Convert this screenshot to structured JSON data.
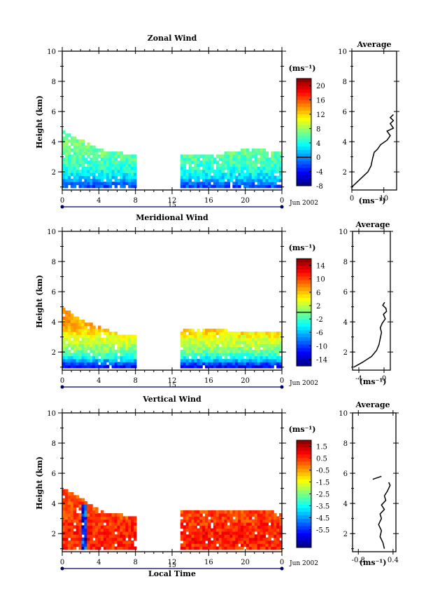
{
  "figure": {
    "date_label": "Jun 2002",
    "day_label": "15",
    "xlabel_bottom": "Local Time"
  },
  "chart_data": [
    {
      "type": "heatmap",
      "title": "Zonal Wind",
      "ylabel": "Height (km)",
      "ylim": [
        0.8,
        10
      ],
      "yticks": [
        2,
        4,
        6,
        8,
        10
      ],
      "xticks": [
        "0",
        "4",
        "8",
        "12",
        "16",
        "20",
        "0"
      ],
      "xlim_hours": [
        0,
        24
      ],
      "data_gap_hours": [
        8,
        12.8
      ],
      "echo_top_km": {
        "x_hours": [
          0,
          2,
          4,
          6,
          8,
          12.8,
          16,
          20,
          24
        ],
        "top": [
          4.6,
          4.0,
          3.4,
          3.2,
          3.0,
          3.1,
          3.0,
          3.4,
          3.3
        ]
      },
      "colorbar": {
        "label": "(ms⁻¹)",
        "min": -8,
        "max": 22,
        "ticks": [
          "20",
          "16",
          "12",
          "8",
          "4",
          "0",
          "-4",
          "-8"
        ],
        "tick_values": [
          20,
          16,
          12,
          8,
          4,
          0,
          -4,
          -8
        ],
        "zero_line": 0
      },
      "field": {
        "layers_km": [
          1.0,
          1.5,
          2.0,
          2.5,
          3.0,
          3.5,
          4.0,
          4.5
        ],
        "values": [
          -2,
          2,
          4,
          5,
          6,
          7,
          7,
          6
        ]
      },
      "profile": {
        "title": "Average",
        "xlabel": "(ms⁻¹)",
        "xticks": [
          "0",
          "10"
        ],
        "xtick_values": [
          0,
          10
        ],
        "xlim": [
          0,
          14
        ],
        "ylim": [
          0.8,
          10
        ],
        "yticks": [
          2,
          4,
          6,
          8,
          10
        ],
        "x": [
          0,
          1,
          3,
          5,
          6,
          6.5,
          7,
          8,
          9,
          11,
          12,
          11,
          13,
          12,
          13,
          12,
          13
        ],
        "y": [
          1.0,
          1.2,
          1.6,
          2.0,
          2.4,
          2.9,
          3.3,
          3.5,
          3.8,
          4.1,
          4.4,
          4.7,
          4.9,
          5.2,
          5.4,
          5.6,
          5.8
        ]
      }
    },
    {
      "type": "heatmap",
      "title": "Meridional Wind",
      "ylabel": "Height (km)",
      "ylim": [
        0.8,
        10
      ],
      "yticks": [
        2,
        4,
        6,
        8,
        10
      ],
      "xticks": [
        "0",
        "4",
        "8",
        "12",
        "16",
        "20",
        "0"
      ],
      "xlim_hours": [
        0,
        24
      ],
      "data_gap_hours": [
        8,
        12.8
      ],
      "echo_top_km": {
        "x_hours": [
          0,
          2,
          4,
          6,
          8,
          12.8,
          16,
          20,
          24
        ],
        "top": [
          4.8,
          4.0,
          3.6,
          3.1,
          3.0,
          3.4,
          3.4,
          3.3,
          3.2
        ]
      },
      "colorbar": {
        "label": "(ms⁻¹)",
        "min": -16,
        "max": 16,
        "ticks": [
          "14",
          "10",
          "6",
          "2",
          "-2",
          "-6",
          "-10",
          "-14"
        ],
        "tick_values": [
          14,
          10,
          6,
          2,
          -2,
          -6,
          -10,
          -14
        ],
        "zero_line": 0
      },
      "field": {
        "layers_km": [
          1.0,
          1.5,
          2.0,
          2.5,
          3.0,
          3.5,
          4.0,
          4.5
        ],
        "values": [
          -12,
          -4,
          0,
          2,
          4,
          6,
          7,
          8
        ]
      },
      "profile": {
        "title": "Average",
        "xlabel": "(ms⁻¹)",
        "xticks": [
          "-4",
          "0"
        ],
        "xtick_values": [
          -4,
          0
        ],
        "xlim": [
          -5,
          1
        ],
        "ylim": [
          0.8,
          10
        ],
        "yticks": [
          2,
          4,
          6,
          8,
          10
        ],
        "x": [
          -4.8,
          -3.5,
          -2.0,
          -1.2,
          -0.8,
          -0.6,
          -0.4,
          -0.6,
          -0.3,
          0.2,
          -0.1,
          0.4,
          0.3,
          -0.2,
          0.1
        ],
        "y": [
          1.0,
          1.3,
          1.7,
          2.1,
          2.5,
          2.9,
          3.3,
          3.6,
          3.9,
          4.2,
          4.5,
          4.7,
          4.9,
          5.1,
          5.3
        ]
      }
    },
    {
      "type": "heatmap",
      "title": "Vertical Wind",
      "ylabel": "Height (km)",
      "ylim": [
        0.8,
        10
      ],
      "yticks": [
        2,
        4,
        6,
        8,
        10
      ],
      "xticks": [
        "0",
        "4",
        "8",
        "12",
        "16",
        "20",
        "0"
      ],
      "xlim_hours": [
        0,
        24
      ],
      "data_gap_hours": [
        8,
        12.8
      ],
      "echo_top_km": {
        "x_hours": [
          0,
          2,
          4,
          6,
          8,
          12.8,
          16,
          20,
          24
        ],
        "top": [
          4.9,
          4.2,
          3.4,
          3.2,
          3.0,
          3.4,
          3.4,
          3.5,
          3.3
        ]
      },
      "colorbar": {
        "label": "(ms⁻¹)",
        "min": -7,
        "max": 2,
        "ticks": [
          "1.5",
          "0.5",
          "-0.5",
          "-1.5",
          "-2.5",
          "-3.5",
          "-4.5",
          "-5.5"
        ],
        "tick_values": [
          1.5,
          0.5,
          -0.5,
          -1.5,
          -2.5,
          -3.5,
          -4.5,
          -5.5
        ],
        "zero_line": null
      },
      "field": {
        "layers_km": [
          1.0,
          1.5,
          2.0,
          2.5,
          3.0,
          3.5,
          4.0,
          4.5
        ],
        "values": [
          0.5,
          0.7,
          0.6,
          0.5,
          0.3,
          0.2,
          0.2,
          0.3
        ]
      },
      "profile": {
        "title": "Average",
        "xlabel": "(ms⁻¹)",
        "xticks": [
          "-0.8",
          "0.4"
        ],
        "xtick_values": [
          -0.8,
          0.4
        ],
        "xlim": [
          -1.0,
          0.5
        ],
        "ylim": [
          0.8,
          10
        ],
        "yticks": [
          2,
          4,
          6,
          8,
          10
        ],
        "x": [
          0.1,
          0.05,
          -0.05,
          0.0,
          -0.1,
          0.0,
          -0.05,
          0.1,
          0.0,
          0.15,
          0.1,
          0.2,
          0.25,
          0.3,
          0.25
        ],
        "y": [
          1.0,
          1.4,
          1.8,
          2.2,
          2.6,
          3.0,
          3.3,
          3.6,
          3.9,
          4.2,
          4.5,
          4.8,
          5.0,
          5.2,
          5.4
        ],
        "upper_segment": {
          "x": [
            -0.3,
            0.0
          ],
          "y": [
            5.6,
            5.8
          ]
        }
      }
    }
  ]
}
